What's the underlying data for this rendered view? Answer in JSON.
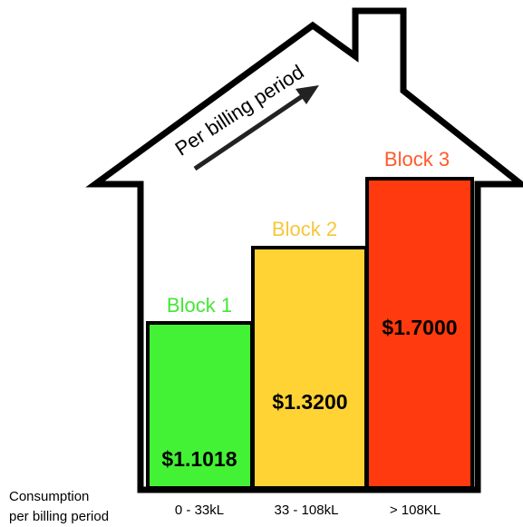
{
  "arrow_label": "Per billing period",
  "blocks": [
    {
      "name": "Block 1",
      "price": "$1.1018",
      "range": "0 - 33kL"
    },
    {
      "name": "Block 2",
      "price": "$1.3200",
      "range": "33 - 108kL"
    },
    {
      "name": "Block 3",
      "price": "$1.7000",
      "range": "> 108KL"
    }
  ],
  "axis_label": [
    "Consumption",
    "per billing period"
  ]
}
